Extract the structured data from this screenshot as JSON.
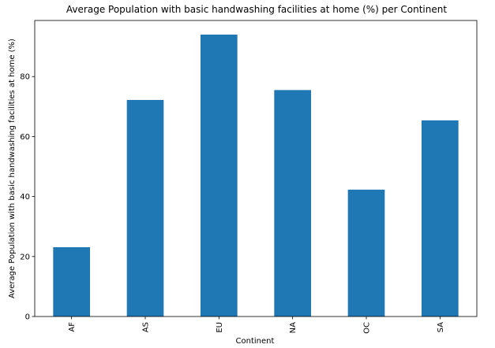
{
  "chart_data": {
    "type": "bar",
    "title": "Average Population with basic handwashing facilities at home (%) per Continent",
    "xlabel": "Continent",
    "ylabel": "Average Population with basic handwashing facilities at home (%)",
    "categories": [
      "AF",
      "AS",
      "EU",
      "NA",
      "OC",
      "SA"
    ],
    "values": [
      23.1,
      72.2,
      94.0,
      75.5,
      42.3,
      65.4
    ],
    "ylim": [
      0,
      98.7
    ],
    "yticks": [
      0,
      20,
      40,
      60,
      80
    ],
    "ytick_labels": [
      "0",
      "20",
      "40",
      "60",
      "80"
    ],
    "grid": false,
    "legend": "none",
    "bar_color": "#1f77b4",
    "xtick_rotation": "vertical"
  }
}
